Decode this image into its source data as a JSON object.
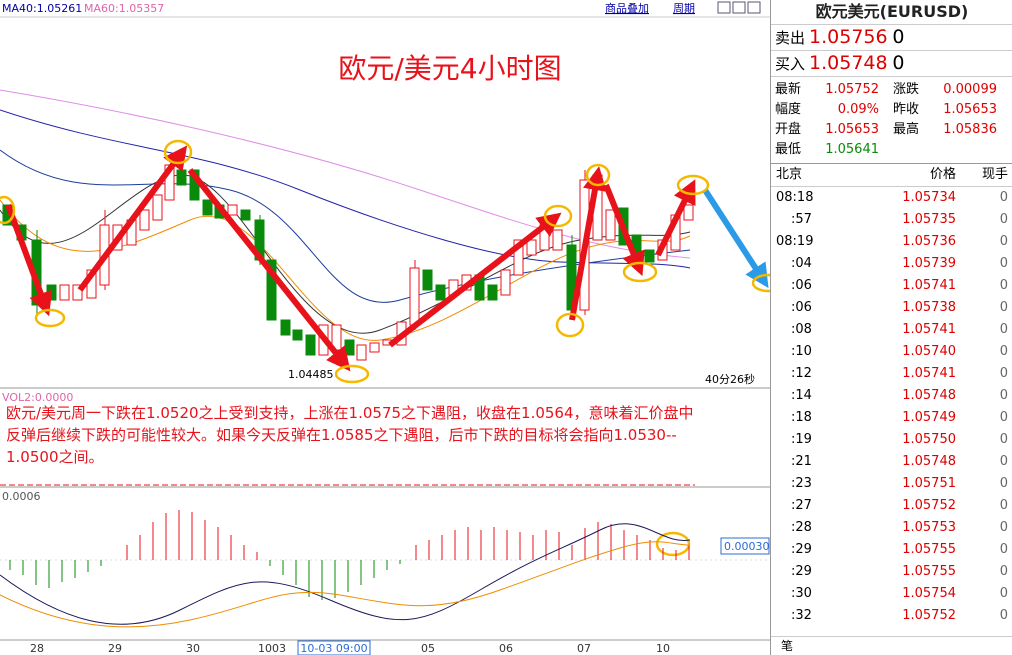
{
  "toolbar": {
    "overlay": "商品叠加",
    "period": "周期"
  },
  "main_chart": {
    "ma40": "MA40:1.05261",
    "ma60": "MA60:1.05357",
    "title": "欧元/美元4小时图",
    "low_label": "1.04485",
    "countdown": "40分26秒"
  },
  "volume_panel": {
    "label": "VOL2:0.0000",
    "commentary": [
      "欧元/美元周一下跌在1.0520之上受到支持，上涨在1.0575之下遇阻，收盘在1.0564，意味着汇价盘中",
      "反弹后继续下跌的可能性较大。如果今天反弹在1.0585之下遇阻，后市下跌的目标将会指向1.0530--",
      "1.0500之间。"
    ]
  },
  "macd_panel": {
    "top_value": "0.0006",
    "current_value": "0.00030"
  },
  "x_axis": [
    "28",
    "29",
    "30",
    "1003",
    "10-03 09:00",
    "05",
    "06",
    "07",
    "10"
  ],
  "quote_panel": {
    "title": "欧元美元(EURUSD)",
    "sell": {
      "label": "卖出",
      "price": "1.05756",
      "volume": "0"
    },
    "buy": {
      "label": "买入",
      "price": "1.05748",
      "volume": "0"
    },
    "stats": [
      [
        "最新",
        "1.05752",
        "涨跌",
        "0.00099"
      ],
      [
        "幅度",
        "0.09%",
        "昨收",
        "1.05653"
      ],
      [
        "开盘",
        "1.05653",
        "最高",
        "1.05836"
      ],
      [
        "最低",
        "1.05641"
      ]
    ],
    "ticks_header": [
      "北京",
      "价格",
      "现手"
    ],
    "ticks": [
      [
        "08:18",
        "1.05734",
        "0"
      ],
      [
        ":57",
        "1.05735",
        "0"
      ],
      [
        "08:19",
        "1.05736",
        "0"
      ],
      [
        ":04",
        "1.05739",
        "0"
      ],
      [
        ":06",
        "1.05741",
        "0"
      ],
      [
        ":06",
        "1.05738",
        "0"
      ],
      [
        ":08",
        "1.05741",
        "0"
      ],
      [
        ":10",
        "1.05740",
        "0"
      ],
      [
        ":12",
        "1.05741",
        "0"
      ],
      [
        ":14",
        "1.05748",
        "0"
      ],
      [
        ":18",
        "1.05749",
        "0"
      ],
      [
        ":19",
        "1.05750",
        "0"
      ],
      [
        ":21",
        "1.05748",
        "0"
      ],
      [
        ":23",
        "1.05751",
        "0"
      ],
      [
        ":27",
        "1.05752",
        "0"
      ],
      [
        ":28",
        "1.05753",
        "0"
      ],
      [
        ":29",
        "1.05755",
        "0"
      ],
      [
        ":29",
        "1.05755",
        "0"
      ],
      [
        ":30",
        "1.05754",
        "0"
      ],
      [
        ":32",
        "1.05752",
        "0"
      ]
    ],
    "footer": "笔"
  }
}
